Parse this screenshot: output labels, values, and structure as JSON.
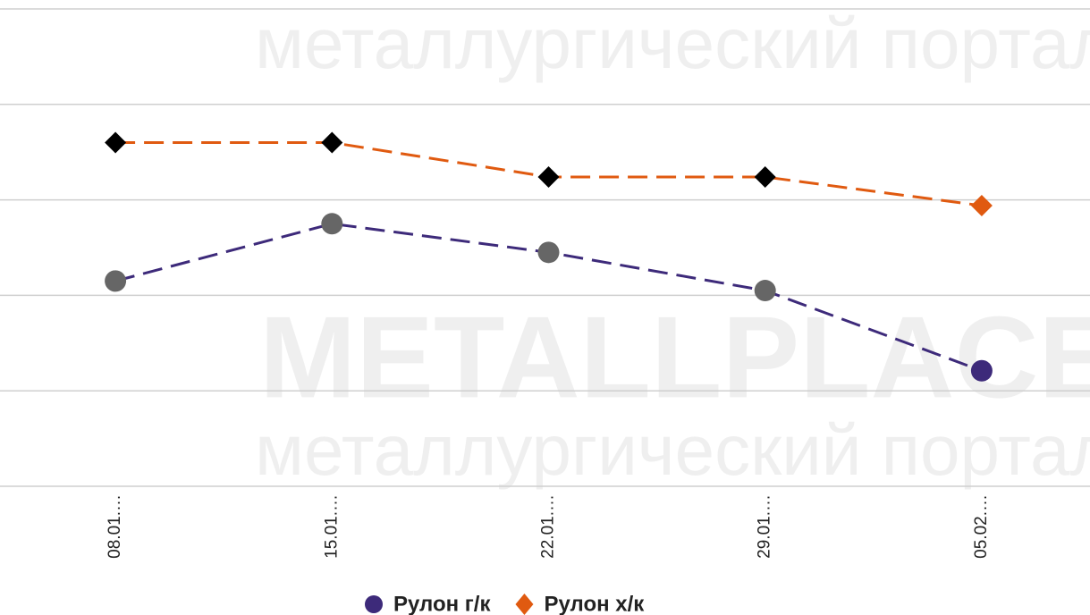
{
  "chart_data": {
    "type": "line",
    "watermark": [
      "METALLPLACE.RU",
      "металлургический портал"
    ],
    "categories": [
      "08.01.…",
      "15.01.…",
      "22.01.…",
      "29.01.…",
      "05.02.…"
    ],
    "ylim": [
      0,
      5
    ],
    "yticks": [
      0,
      1,
      2,
      3,
      4,
      5
    ],
    "grid": true,
    "legend": "bottom",
    "series": [
      {
        "name": "Рулон г/к",
        "color": "#3d2a7a",
        "marker": "circle",
        "marker_colors": [
          "#666666",
          "#666666",
          "#666666",
          "#666666",
          "#3d2a7a"
        ],
        "values": [
          2.15,
          2.75,
          2.45,
          2.05,
          1.21
        ]
      },
      {
        "name": "Рулон х/к",
        "color": "#e05a10",
        "marker": "diamond",
        "marker_colors": [
          "#000000",
          "#000000",
          "#000000",
          "#000000",
          "#e05a10"
        ],
        "values": [
          3.6,
          3.6,
          3.24,
          3.24,
          2.94
        ]
      }
    ]
  }
}
